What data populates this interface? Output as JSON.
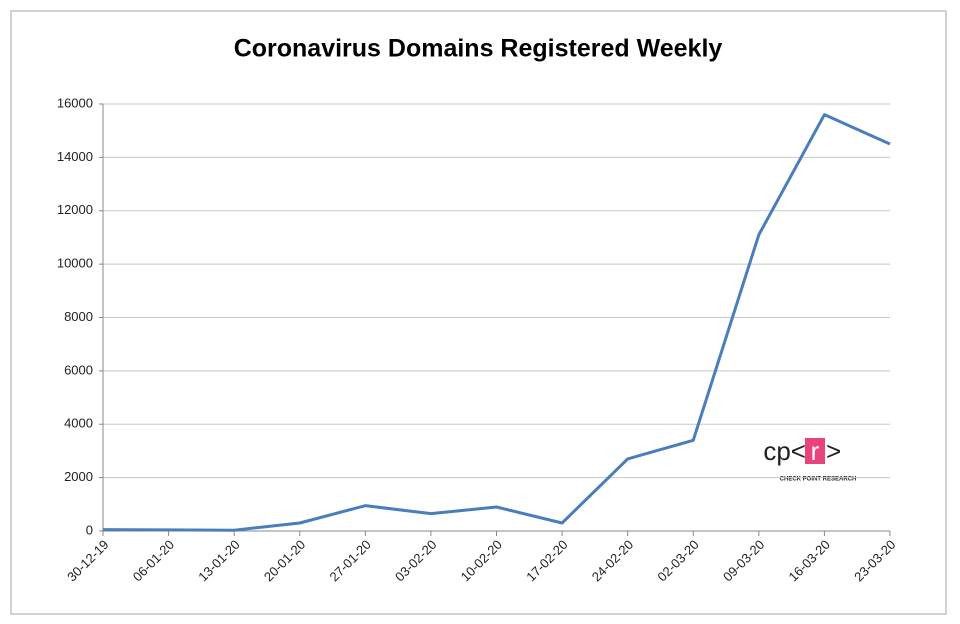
{
  "chart_data": {
    "type": "line",
    "title": "Coronavirus Domains Registered Weekly",
    "categories": [
      "30-12-19",
      "06-01-20",
      "13-01-20",
      "20-01-20",
      "27-01-20",
      "03-02-20",
      "10-02-20",
      "17-02-20",
      "24-02-20",
      "02-03-20",
      "09-03-20",
      "16-03-20",
      "23-03-20"
    ],
    "values": [
      50,
      40,
      30,
      300,
      950,
      650,
      900,
      300,
      2700,
      3400,
      11100,
      15600,
      14500
    ],
    "color": "#4a7ebb",
    "ylim": [
      0,
      16000
    ],
    "yticks": [
      0,
      2000,
      4000,
      6000,
      8000,
      10000,
      12000,
      14000,
      16000
    ],
    "grid": true,
    "logo": {
      "prefix": "cp<",
      "highlight": "r",
      "suffix": ">",
      "caption": "CHECK POINT RESEARCH"
    }
  }
}
